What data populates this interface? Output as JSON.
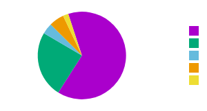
{
  "chart_data": {
    "type": "pie",
    "values": [
      0.64,
      0.245,
      0.04,
      0.055,
      0.02
    ],
    "colors": [
      "#aa00cc",
      "#00aa77",
      "#66bbdd",
      "#ee9900",
      "#eedd33"
    ],
    "legend": "right"
  }
}
